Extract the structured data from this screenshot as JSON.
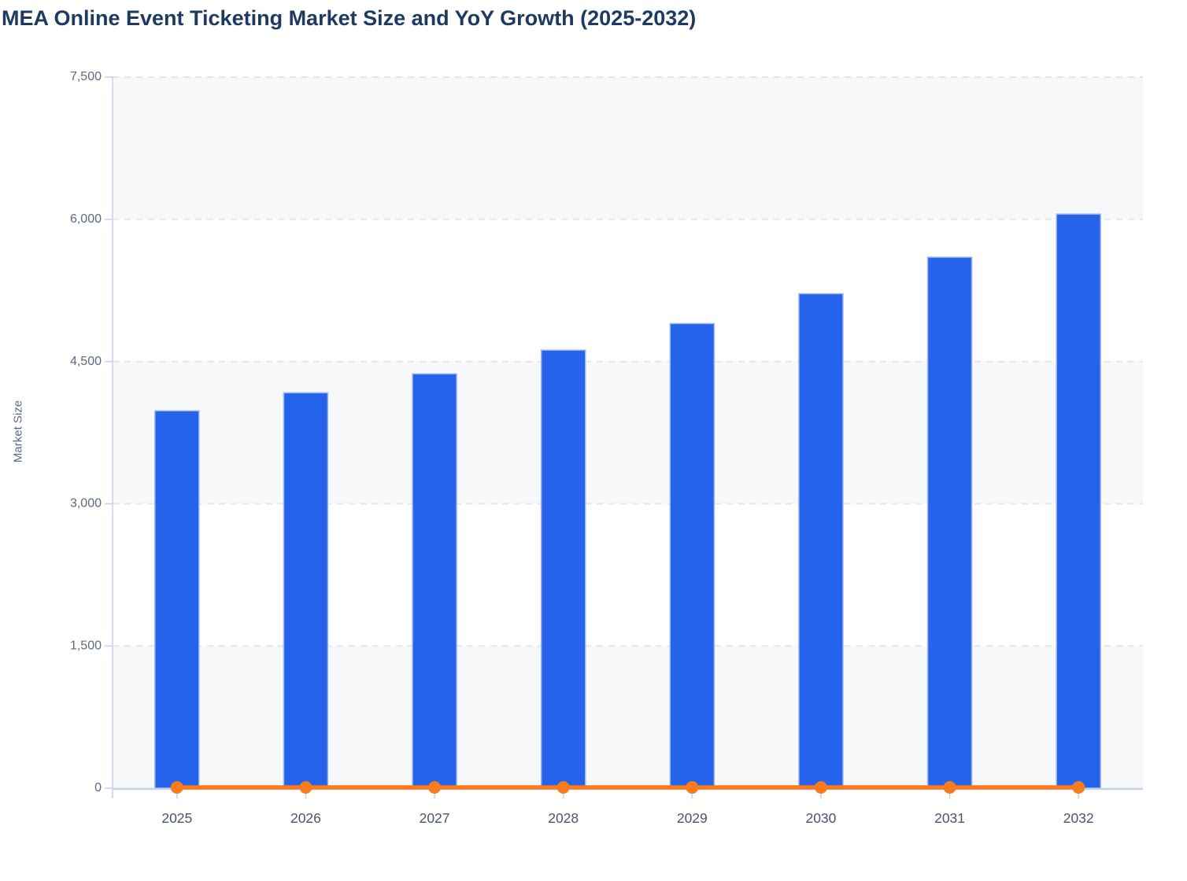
{
  "title": "MEA Online Event Ticketing Market Size and YoY Growth (2025-2032)",
  "y_axis": {
    "title": "Market Size",
    "max": 7500,
    "tick_values": [
      0,
      1500,
      3000,
      4500,
      6000,
      7500
    ],
    "tick_labels": [
      "0",
      "1,500",
      "3,000",
      "4,500",
      "6,000",
      "7,500"
    ]
  },
  "x_axis": {
    "tick_labels": [
      "2025",
      "2026",
      "2027",
      "2028",
      "2029",
      "2030",
      "2031",
      "2032"
    ]
  },
  "chart_data": {
    "type": "bar",
    "categories": [
      "2025",
      "2026",
      "2027",
      "2028",
      "2029",
      "2030",
      "2031",
      "2032"
    ],
    "series": [
      {
        "name": "Market Size",
        "type": "bar",
        "values": [
          3980,
          4170,
          4370,
          4620,
          4900,
          5215,
          5600,
          6055
        ],
        "color": "#2563eb"
      },
      {
        "name": "YoY Growth",
        "type": "line",
        "values": [
          0,
          4.8,
          4.8,
          5.7,
          6.1,
          6.4,
          7.4,
          8.1
        ],
        "color": "#f87b1e",
        "note": "plotted on the same 0-7500 axis, so the line hugs the zero baseline"
      }
    ],
    "title": "MEA Online Event Ticketing Market Size and YoY Growth (2025-2032)",
    "xlabel": "",
    "ylabel": "Market Size",
    "ylim": [
      0,
      7500
    ],
    "grid": "horizontal dashed gridlines at every 1,500",
    "plot_bands": "alternating horizontal bands, shaded for 0-1500, 3000-4500, 6000-7500",
    "legend": "none"
  },
  "colors": {
    "bar": "#2563eb",
    "bar_edge": "#9db3f0",
    "line": "#f87b1e",
    "band": "#f7f8fa",
    "grid": "#e4e6eb",
    "axis": "#c7cfe9",
    "title": "#1e3a60",
    "y_label": "#5c6a80",
    "x_label": "#46556c"
  }
}
